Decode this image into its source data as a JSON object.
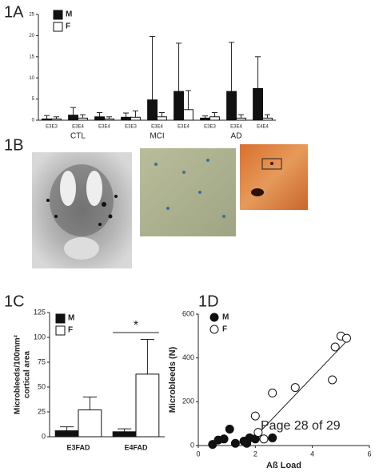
{
  "panel_labels": [
    "1A",
    "1B",
    "1C",
    "1D"
  ],
  "footer": "Page 28 of 29",
  "chart_data": [
    {
      "type": "bar",
      "categories": [
        "E3E3",
        "E3E4",
        "E3E4",
        "E3E3",
        "E3E4",
        "E3E4",
        "E3E3",
        "E3E4",
        "E4E4"
      ],
      "group_labels": [
        "CTL",
        "MCI",
        "AD"
      ],
      "series": [
        {
          "name": "M",
          "color": "#111111",
          "values": [
            0.3,
            1.2,
            0.8,
            0.7,
            4.8,
            6.8,
            0.5,
            6.8,
            7.5
          ],
          "errors": [
            0.8,
            1.8,
            1.0,
            1.0,
            15,
            11.4,
            0.5,
            11.6,
            7.5
          ]
        },
        {
          "name": "F",
          "color": "#ffffff",
          "values": [
            0.3,
            0.5,
            0.3,
            0.7,
            0.8,
            2.5,
            0.8,
            0.5,
            0.5
          ],
          "errors": [
            0.5,
            0.8,
            0.5,
            1.5,
            1.0,
            4.5,
            1.0,
            0.8,
            0.8
          ]
        }
      ],
      "ylim": [
        0,
        25
      ],
      "yticks": [
        0,
        5,
        10,
        15,
        20,
        25
      ]
    },
    {
      "type": "bar",
      "ylabel": [
        "Microbleeds/100mm²",
        "cortical area"
      ],
      "categories": [
        "E3FAD",
        "E4FAD"
      ],
      "series": [
        {
          "name": "M",
          "color": "#111111",
          "values": [
            6,
            5
          ],
          "errors": [
            4,
            3
          ]
        },
        {
          "name": "F",
          "color": "#ffffff",
          "values": [
            27,
            63
          ],
          "errors": [
            13,
            35
          ]
        }
      ],
      "annotation": "*",
      "ylim": [
        0,
        125
      ],
      "yticks": [
        0,
        25,
        50,
        75,
        100,
        125
      ]
    },
    {
      "type": "scatter",
      "xlabel": "Aß Load",
      "ylabel": "Microbleeds (N)",
      "series": [
        {
          "name": "M",
          "color": "#111111",
          "x": [
            0.5,
            0.7,
            0.9,
            1.1,
            1.3,
            1.6,
            1.7,
            1.8,
            2.0,
            2.6
          ],
          "values": [
            5,
            25,
            30,
            75,
            10,
            20,
            10,
            35,
            30,
            35
          ]
        },
        {
          "name": "F",
          "color": "#ffffff",
          "x": [
            2.0,
            2.1,
            2.3,
            2.6,
            3.4,
            4.7,
            4.8,
            5.0,
            5.2
          ],
          "values": [
            135,
            60,
            30,
            240,
            265,
            300,
            450,
            500,
            490
          ]
        }
      ],
      "trendline": {
        "x": [
          1.7,
          5.3
        ],
        "y": [
          0,
          490
        ]
      },
      "xlim": [
        0,
        6
      ],
      "xticks": [
        0,
        2,
        4,
        6
      ],
      "ylim": [
        0,
        600
      ],
      "yticks": [
        0,
        200,
        400,
        600
      ]
    }
  ]
}
